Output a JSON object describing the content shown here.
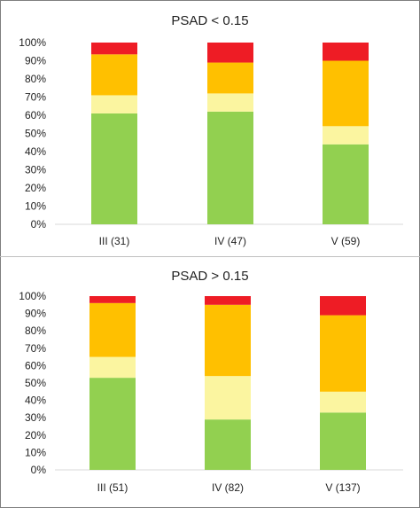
{
  "chart_data": [
    {
      "type": "bar",
      "stacked": true,
      "title": "PSAD < 0.15",
      "categories": [
        "III  (31)",
        "IV (47)",
        "V (59)"
      ],
      "y_ticks": [
        "0%",
        "10%",
        "20%",
        "30%",
        "40%",
        "50%",
        "60%",
        "70%",
        "80%",
        "90%",
        "100%"
      ],
      "ylim": [
        0,
        100
      ],
      "grid": false,
      "legend": "none",
      "series": [
        {
          "color": "#92d050",
          "values": [
            61,
            62,
            44
          ]
        },
        {
          "color": "#fbf5a0",
          "values": [
            10,
            10,
            10
          ]
        },
        {
          "color": "#ffc000",
          "values": [
            22.5,
            17,
            36
          ]
        },
        {
          "color": "#ee1c25",
          "values": [
            6.5,
            11,
            10
          ]
        }
      ]
    },
    {
      "type": "bar",
      "stacked": true,
      "title": "PSAD > 0.15",
      "categories": [
        "III  (51)",
        "IV (82)",
        "V (137)"
      ],
      "y_ticks": [
        "0%",
        "10%",
        "20%",
        "30%",
        "40%",
        "50%",
        "60%",
        "70%",
        "80%",
        "90%",
        "100%"
      ],
      "ylim": [
        0,
        100
      ],
      "grid": false,
      "legend": "none",
      "series": [
        {
          "color": "#92d050",
          "values": [
            53,
            29,
            33
          ]
        },
        {
          "color": "#fbf5a0",
          "values": [
            12,
            25,
            12
          ]
        },
        {
          "color": "#ffc000",
          "values": [
            31,
            41,
            44
          ]
        },
        {
          "color": "#ee1c25",
          "values": [
            4,
            5,
            11
          ]
        }
      ]
    }
  ]
}
